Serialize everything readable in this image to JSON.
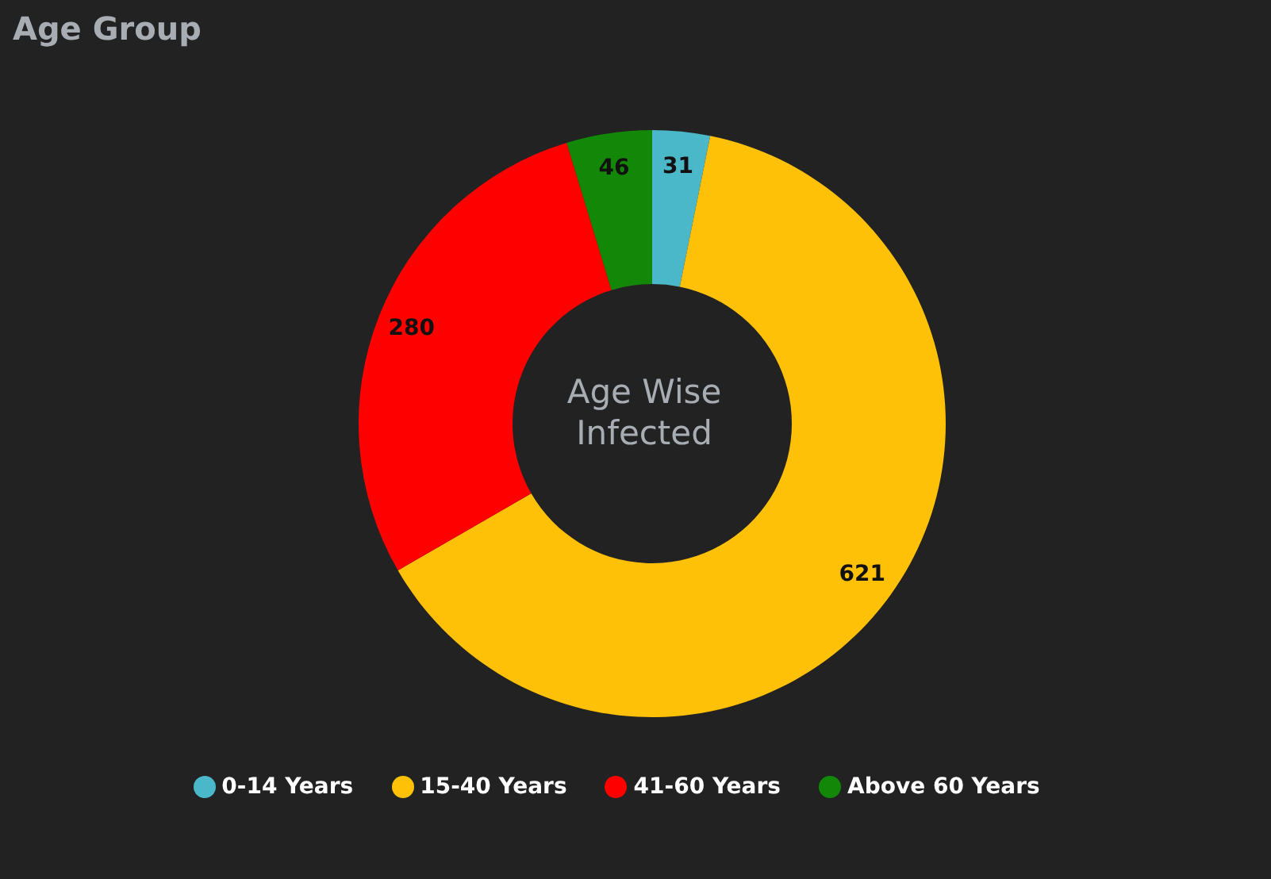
{
  "chart_data": {
    "type": "donut",
    "title": "Age Group",
    "annotations": [
      "Age Wise Infected"
    ],
    "categories": [
      "0-14 Years",
      "15-40 Years",
      "41-60 Years",
      "Above 60 Years"
    ],
    "values": [
      31,
      621,
      280,
      46
    ],
    "colors": [
      "#4bb8c9",
      "#ffc107",
      "#ff0000",
      "#138808"
    ],
    "data_labels": true,
    "legend": "bottom"
  }
}
